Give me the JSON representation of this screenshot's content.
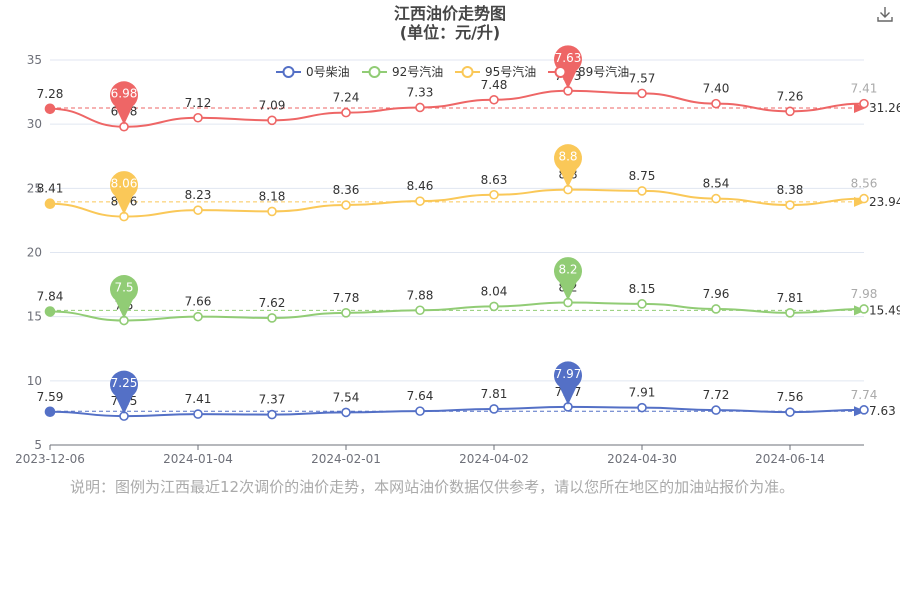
{
  "title": {
    "line1": "江西油价走势图",
    "line2": "(单位：元/升)"
  },
  "note": "说明：图例为江西最近12次调价的油价走势，本网站油价数据仅供参考，请以您所在地区的加油站报价为准。",
  "toolbar": {
    "download_icon": "download-icon"
  },
  "chart_data": {
    "type": "line",
    "title": "江西油价走势图",
    "subtitle": "(单位：元/升)",
    "x_ticks": [
      "2023-12-06",
      "2024-01-04",
      "2024-02-01",
      "2024-04-02",
      "2024-04-30",
      "2024-06-14"
    ],
    "y_ticks": [
      5,
      10,
      15,
      20,
      25,
      30,
      35
    ],
    "ylim": [
      5,
      35
    ],
    "grid": true,
    "legend_position": "top",
    "series": [
      {
        "name": "0号柴油",
        "color": "#5470c6",
        "labels": [
          "7.59",
          "7.25",
          "7.41",
          "7.37",
          "7.54",
          "7.64",
          "7.81",
          "7.97",
          "7.91",
          "7.72",
          "7.56",
          "7.74"
        ],
        "values": [
          7.59,
          7.25,
          7.41,
          7.37,
          7.54,
          7.64,
          7.81,
          7.97,
          7.91,
          7.72,
          7.56,
          7.74
        ],
        "max_label": "7.97",
        "min_label": "7.25",
        "avg_label": "7.63",
        "avg": 7.63
      },
      {
        "name": "92号汽油",
        "color": "#91cc75",
        "labels": [
          "7.84",
          "7.5",
          "7.66",
          "7.62",
          "7.78",
          "7.88",
          "8.04",
          "8.2",
          "8.15",
          "7.96",
          "7.81",
          "7.98"
        ],
        "values": [
          15.4,
          14.7,
          15.0,
          14.9,
          15.3,
          15.5,
          15.8,
          16.1,
          16.0,
          15.6,
          15.3,
          15.6
        ],
        "max_label": "8.2",
        "min_label": "7.5",
        "avg_label": "15.49",
        "avg": 15.49
      },
      {
        "name": "95号汽油",
        "color": "#fac858",
        "labels": [
          "8.41",
          "8.06",
          "8.23",
          "8.18",
          "8.36",
          "8.46",
          "8.63",
          "8.8",
          "8.75",
          "8.54",
          "8.38",
          "8.56"
        ],
        "values": [
          23.8,
          22.8,
          23.3,
          23.2,
          23.7,
          24.0,
          24.5,
          24.9,
          24.8,
          24.2,
          23.7,
          24.2
        ],
        "max_label": "8.8",
        "min_label": "8.06",
        "avg_label": "23.94",
        "avg": 23.94
      },
      {
        "name": "89号汽油",
        "color": "#ee6666",
        "labels": [
          "7.28",
          "6.98",
          "7.12",
          "7.09",
          "7.24",
          "7.33",
          "7.48",
          "7.63",
          "7.57",
          "7.40",
          "7.26",
          "7.41"
        ],
        "values": [
          31.2,
          29.8,
          30.5,
          30.3,
          30.9,
          31.3,
          31.9,
          32.6,
          32.4,
          31.6,
          31.0,
          31.6
        ],
        "max_label": "7.63",
        "min_label": "6.98",
        "avg_label": "31.26",
        "avg": 31.26
      }
    ]
  }
}
